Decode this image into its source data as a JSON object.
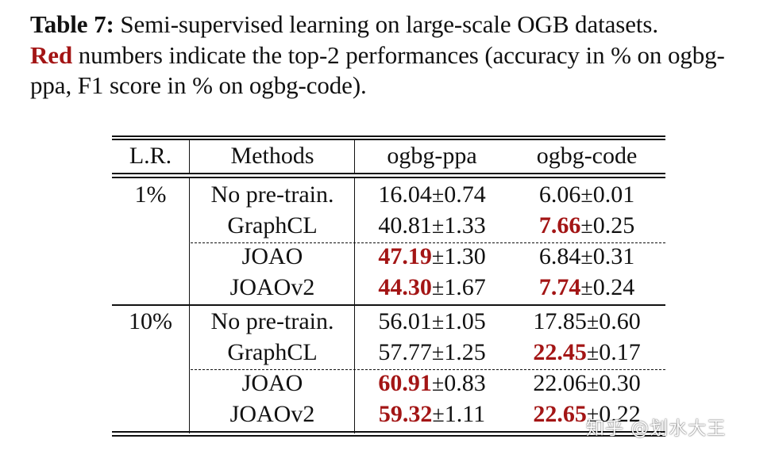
{
  "caption": {
    "label": "Table 7:",
    "line1": " Semi-supervised learning on large-scale OGB datasets.",
    "red_word": "Red",
    "rest": " numbers indicate the top-2 performances (accuracy in % on ogbg-ppa, F1 score in % on ogbg-code)."
  },
  "table": {
    "headers": [
      "L.R.",
      "Methods",
      "ogbg-ppa",
      "ogbg-code"
    ],
    "groups": [
      {
        "lr": "1%",
        "rows": [
          {
            "method": "No pre-train.",
            "ppa": {
              "mean": "16.04",
              "std": "0.74",
              "top": false
            },
            "code": {
              "mean": "6.06",
              "std": "0.01",
              "top": false
            }
          },
          {
            "method": "GraphCL",
            "ppa": {
              "mean": "40.81",
              "std": "1.33",
              "top": false
            },
            "code": {
              "mean": "7.66",
              "std": "0.25",
              "top": true
            }
          },
          {
            "method": "JOAO",
            "ppa": {
              "mean": "47.19",
              "std": "1.30",
              "top": true
            },
            "code": {
              "mean": "6.84",
              "std": "0.31",
              "top": false
            }
          },
          {
            "method": "JOAOv2",
            "ppa": {
              "mean": "44.30",
              "std": "1.67",
              "top": true
            },
            "code": {
              "mean": "7.74",
              "std": "0.24",
              "top": true
            }
          }
        ]
      },
      {
        "lr": "10%",
        "rows": [
          {
            "method": "No pre-train.",
            "ppa": {
              "mean": "56.01",
              "std": "1.05",
              "top": false
            },
            "code": {
              "mean": "17.85",
              "std": "0.60",
              "top": false
            }
          },
          {
            "method": "GraphCL",
            "ppa": {
              "mean": "57.77",
              "std": "1.25",
              "top": false
            },
            "code": {
              "mean": "22.45",
              "std": "0.17",
              "top": true
            }
          },
          {
            "method": "JOAO",
            "ppa": {
              "mean": "60.91",
              "std": "0.83",
              "top": true
            },
            "code": {
              "mean": "22.06",
              "std": "0.30",
              "top": false
            }
          },
          {
            "method": "JOAOv2",
            "ppa": {
              "mean": "59.32",
              "std": "1.11",
              "top": true
            },
            "code": {
              "mean": "22.65",
              "std": "0.22",
              "top": true
            }
          }
        ]
      }
    ],
    "pm_symbol": "±",
    "highlight_color": "#a31515"
  },
  "watermark": "知乎 @划水大王"
}
